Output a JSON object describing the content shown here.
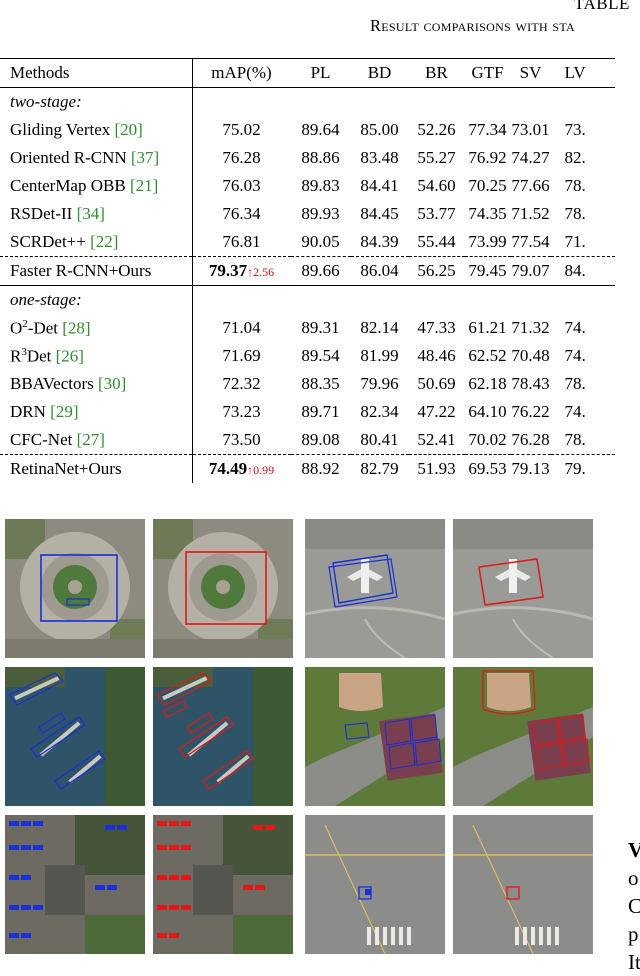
{
  "caption": {
    "label": "TABLE",
    "title": "Result comparisons with sta"
  },
  "table": {
    "headers": [
      "Methods",
      "mAP(%)",
      "PL",
      "BD",
      "BR",
      "GTF",
      "SV",
      "LV"
    ],
    "sections": [
      {
        "name": "two-stage:",
        "rows": [
          {
            "method": "Gliding Vertex ",
            "ref": "[20]",
            "map": "75.02",
            "vals": [
              "89.64",
              "85.00",
              "52.26",
              "77.34",
              "73.01",
              "73."
            ]
          },
          {
            "method": "Oriented R-CNN ",
            "ref": "[37]",
            "map": "76.28",
            "vals": [
              "88.86",
              "83.48",
              "55.27",
              "76.92",
              "74.27",
              "82."
            ]
          },
          {
            "method": "CenterMap OBB ",
            "ref": "[21]",
            "map": "76.03",
            "vals": [
              "89.83",
              "84.41",
              "54.60",
              "70.25",
              "77.66",
              "78."
            ]
          },
          {
            "method": "RSDet-II ",
            "ref": "[34]",
            "map": "76.34",
            "vals": [
              "89.93",
              "84.45",
              "53.77",
              "74.35",
              "71.52",
              "78."
            ]
          },
          {
            "method": "SCRDet++ ",
            "ref": "[22]",
            "map": "76.81",
            "vals": [
              "90.05",
              "84.39",
              "55.44",
              "73.99",
              "77.54",
              "71."
            ]
          }
        ],
        "ours": {
          "method": "Faster R-CNN+Ours",
          "map": "79.37",
          "gain": "↑2.56",
          "vals": [
            "89.66",
            "86.04",
            "56.25",
            "79.45",
            "79.07",
            "84."
          ]
        }
      },
      {
        "name": "one-stage:",
        "rows": [
          {
            "method_pre": "O",
            "sup": "2",
            "method": "-Det ",
            "ref": "[28]",
            "map": "71.04",
            "vals": [
              "89.31",
              "82.14",
              "47.33",
              "61.21",
              "71.32",
              "74."
            ]
          },
          {
            "method_pre": "R",
            "sup": "3",
            "method": "Det ",
            "ref": "[26]",
            "map": "71.69",
            "vals": [
              "89.54",
              "81.99",
              "48.46",
              "62.52",
              "70.48",
              "74."
            ]
          },
          {
            "method": "BBAVectors ",
            "ref": "[30]",
            "map": "72.32",
            "vals": [
              "88.35",
              "79.96",
              "50.69",
              "62.18",
              "78.43",
              "78."
            ]
          },
          {
            "method": "DRN ",
            "ref": "[29]",
            "map": "73.23",
            "vals": [
              "89.71",
              "82.34",
              "47.22",
              "64.10",
              "76.22",
              "74."
            ]
          },
          {
            "method": "CFC-Net ",
            "ref": "[27]",
            "map": "73.50",
            "vals": [
              "89.08",
              "80.41",
              "52.41",
              "70.02",
              "76.28",
              "78."
            ]
          }
        ],
        "ours": {
          "method": "RetinaNet+Ours",
          "map": "74.49",
          "gain": "↑0.99",
          "vals": [
            "88.92",
            "82.79",
            "51.93",
            "69.53",
            "79.13",
            "79."
          ]
        }
      }
    ]
  },
  "side_text": [
    "V",
    "o",
    "C",
    "p",
    "It"
  ],
  "colors": {
    "baseline_box": "#1a2fd6",
    "ours_box": "#e01818",
    "ref_link": "#2f8f2f",
    "gain": "#d01010"
  }
}
